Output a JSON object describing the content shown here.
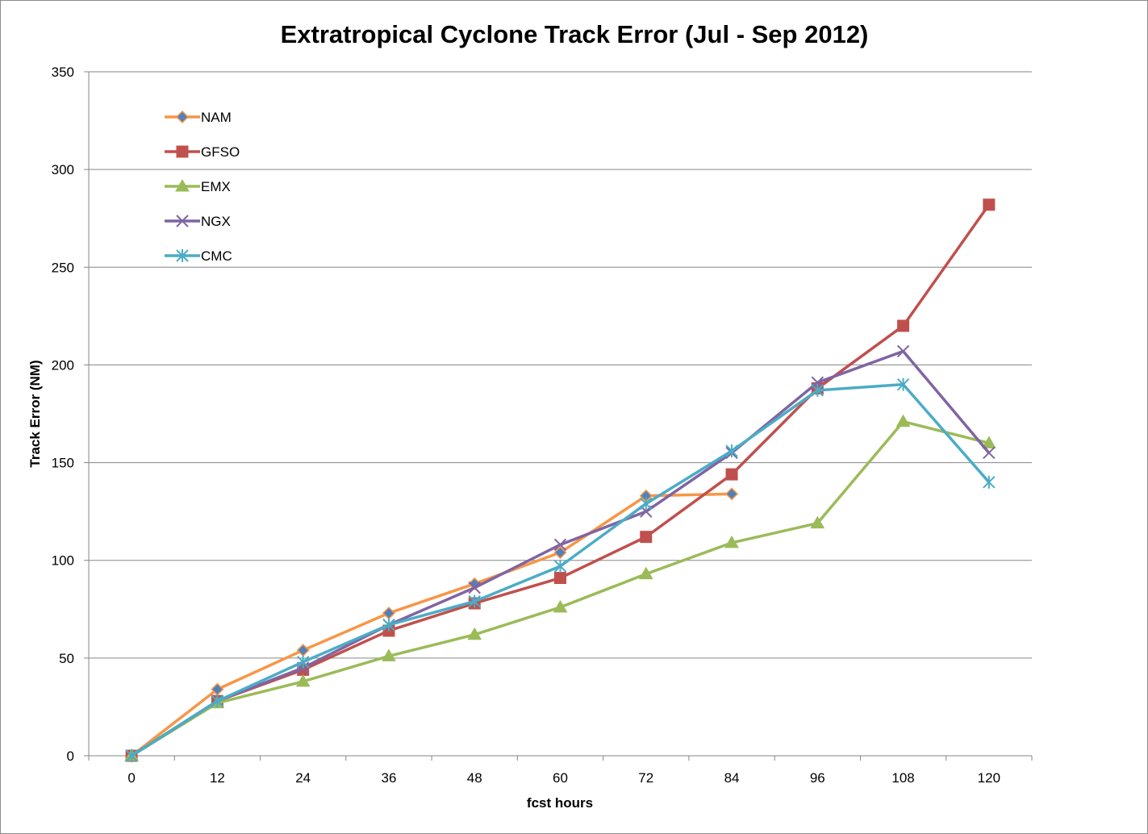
{
  "chart_data": {
    "type": "line",
    "title": "Extratropical Cyclone Track Error (Jul - Sep 2012)",
    "xlabel": "fcst hours",
    "ylabel": "Track Error (NM)",
    "categories": [
      "0",
      "12",
      "24",
      "36",
      "48",
      "60",
      "72",
      "84",
      "96",
      "108",
      "120"
    ],
    "ylim": [
      0,
      350
    ],
    "yticks": [
      0,
      50,
      100,
      150,
      200,
      250,
      300,
      350
    ],
    "grid": true,
    "legend_position": "top-left",
    "series": [
      {
        "name": "NAM",
        "color": "#f79646",
        "marker": "diamond",
        "marker_fill": "#4f81bd",
        "values": [
          0,
          34,
          54,
          73,
          88,
          104,
          133,
          134,
          null,
          null,
          null
        ]
      },
      {
        "name": "GFSO",
        "color": "#c0504d",
        "marker": "square",
        "marker_fill": "#c0504d",
        "values": [
          0,
          28,
          44,
          64,
          78,
          91,
          112,
          144,
          188,
          220,
          282
        ]
      },
      {
        "name": "EMX",
        "color": "#9bbb59",
        "marker": "triangle",
        "marker_fill": "#9bbb59",
        "values": [
          0,
          27,
          38,
          51,
          62,
          76,
          93,
          109,
          119,
          171,
          160
        ]
      },
      {
        "name": "NGX",
        "color": "#8064a2",
        "marker": "x",
        "marker_fill": "#8064a2",
        "values": [
          0,
          28,
          45,
          67,
          86,
          108,
          125,
          155,
          191,
          207,
          155
        ]
      },
      {
        "name": "CMC",
        "color": "#4bacc6",
        "marker": "star",
        "marker_fill": "#4bacc6",
        "values": [
          0,
          28,
          48,
          67,
          79,
          97,
          129,
          156,
          187,
          190,
          140
        ]
      }
    ]
  }
}
